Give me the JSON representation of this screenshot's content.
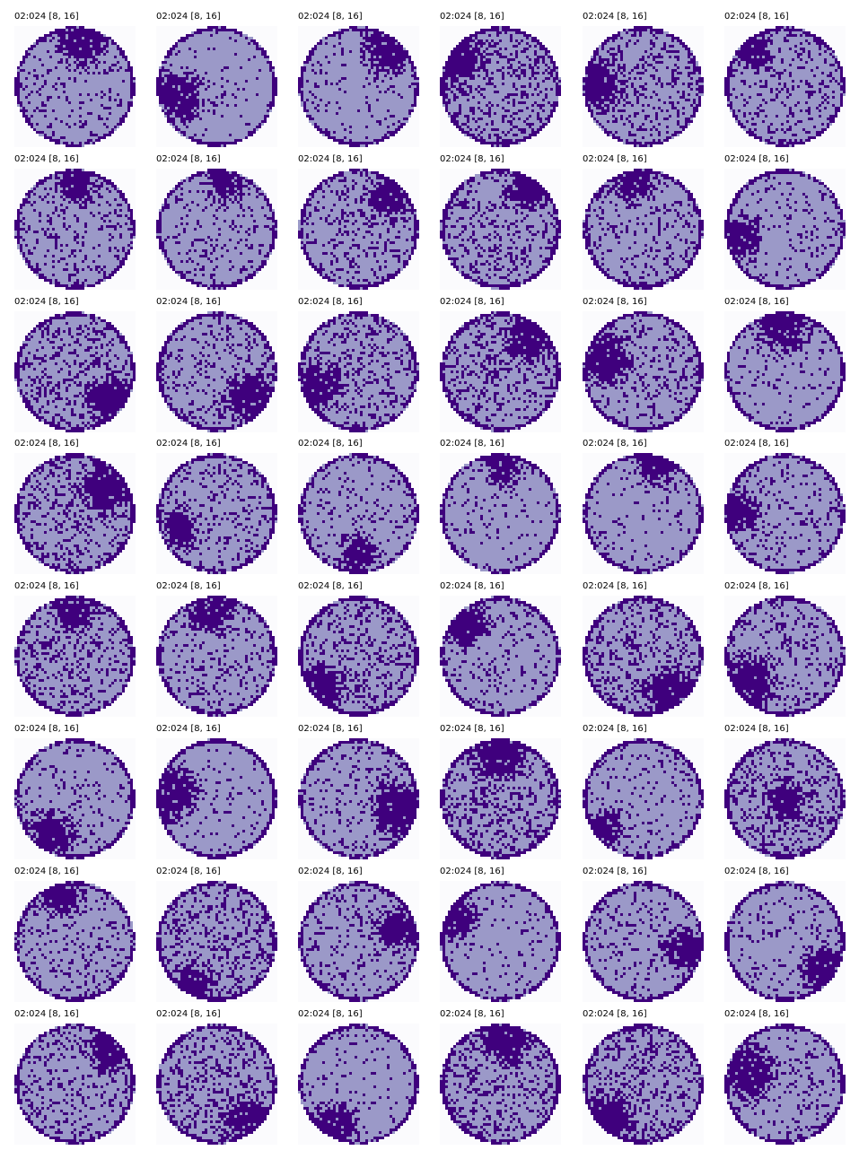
{
  "figure": {
    "panel_title": "02:024 [8, 16]",
    "rows": 8,
    "cols": 6,
    "colors": {
      "background": "#fbfbfd",
      "fill": "#9b99c8",
      "dark": "#3f007d"
    },
    "panels": [
      {
        "blob": [
          0.55,
          0.1
        ],
        "density": 0.15
      },
      {
        "blob": [
          0.18,
          0.58
        ],
        "density": 0.06
      },
      {
        "blob": [
          0.75,
          0.18
        ],
        "density": 0.1
      },
      {
        "blob": [
          0.12,
          0.28
        ],
        "density": 0.3
      },
      {
        "blob": [
          0.1,
          0.48
        ],
        "density": 0.22
      },
      {
        "blob": [
          0.25,
          0.22
        ],
        "density": 0.2
      },
      {
        "blob": [
          0.52,
          0.12
        ],
        "density": 0.18
      },
      {
        "blob": [
          0.58,
          0.1
        ],
        "density": 0.16
      },
      {
        "blob": [
          0.75,
          0.25
        ],
        "density": 0.2
      },
      {
        "blob": [
          0.75,
          0.15
        ],
        "density": 0.24
      },
      {
        "blob": [
          0.42,
          0.1
        ],
        "density": 0.18
      },
      {
        "blob": [
          0.12,
          0.58
        ],
        "density": 0.1
      },
      {
        "blob": [
          0.78,
          0.72
        ],
        "density": 0.24
      },
      {
        "blob": [
          0.78,
          0.72
        ],
        "density": 0.18
      },
      {
        "blob": [
          0.15,
          0.62
        ],
        "density": 0.22
      },
      {
        "blob": [
          0.75,
          0.22
        ],
        "density": 0.24
      },
      {
        "blob": [
          0.18,
          0.4
        ],
        "density": 0.2
      },
      {
        "blob": [
          0.48,
          0.12
        ],
        "density": 0.1
      },
      {
        "blob": [
          0.78,
          0.28
        ],
        "density": 0.26
      },
      {
        "blob": [
          0.18,
          0.62
        ],
        "density": 0.18
      },
      {
        "blob": [
          0.5,
          0.85
        ],
        "density": 0.14
      },
      {
        "blob": [
          0.52,
          0.12
        ],
        "density": 0.08
      },
      {
        "blob": [
          0.62,
          0.08
        ],
        "density": 0.08
      },
      {
        "blob": [
          0.1,
          0.48
        ],
        "density": 0.14
      },
      {
        "blob": [
          0.5,
          0.12
        ],
        "density": 0.24
      },
      {
        "blob": [
          0.45,
          0.12
        ],
        "density": 0.16
      },
      {
        "blob": [
          0.18,
          0.78
        ],
        "density": 0.26
      },
      {
        "blob": [
          0.22,
          0.22
        ],
        "density": 0.12
      },
      {
        "blob": [
          0.72,
          0.8
        ],
        "density": 0.24
      },
      {
        "blob": [
          0.22,
          0.72
        ],
        "density": 0.2
      },
      {
        "blob": [
          0.28,
          0.82
        ],
        "density": 0.12
      },
      {
        "blob": [
          0.12,
          0.45
        ],
        "density": 0.08
      },
      {
        "blob": [
          0.82,
          0.58
        ],
        "density": 0.14
      },
      {
        "blob": [
          0.5,
          0.1
        ],
        "density": 0.3
      },
      {
        "blob": [
          0.2,
          0.75
        ],
        "density": 0.12
      },
      {
        "blob": [
          0.5,
          0.5
        ],
        "density": 0.28
      },
      {
        "blob": [
          0.4,
          0.12
        ],
        "density": 0.16
      },
      {
        "blob": [
          0.3,
          0.85
        ],
        "density": 0.26
      },
      {
        "blob": [
          0.82,
          0.4
        ],
        "density": 0.16
      },
      {
        "blob": [
          0.12,
          0.3
        ],
        "density": 0.08
      },
      {
        "blob": [
          0.85,
          0.58
        ],
        "density": 0.12
      },
      {
        "blob": [
          0.82,
          0.72
        ],
        "density": 0.12
      },
      {
        "blob": [
          0.8,
          0.2
        ],
        "density": 0.2
      },
      {
        "blob": [
          0.75,
          0.82
        ],
        "density": 0.24
      },
      {
        "blob": [
          0.3,
          0.88
        ],
        "density": 0.08
      },
      {
        "blob": [
          0.55,
          0.12
        ],
        "density": 0.24
      },
      {
        "blob": [
          0.2,
          0.78
        ],
        "density": 0.26
      },
      {
        "blob": [
          0.2,
          0.4
        ],
        "density": 0.14
      }
    ]
  }
}
